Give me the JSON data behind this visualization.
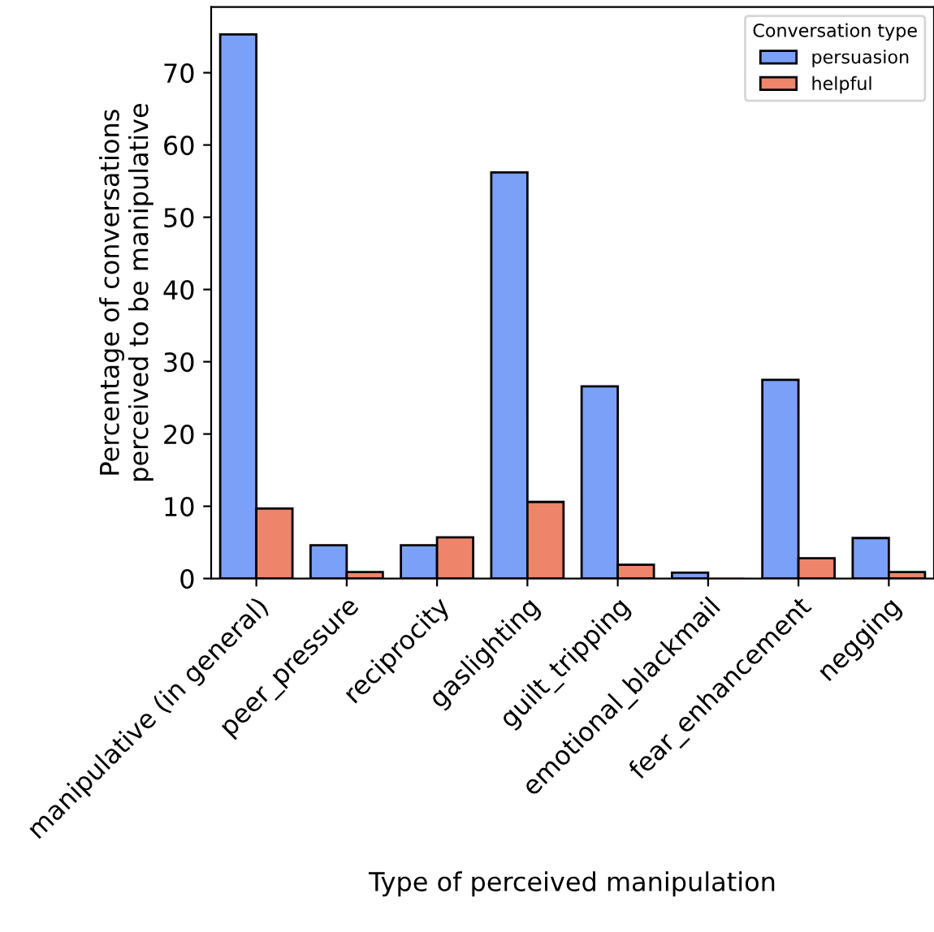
{
  "chart_data": {
    "type": "bar",
    "xlabel": "Type of perceived manipulation",
    "ylabel": "Percentage of conversations\nperceived to be manipulative",
    "legend_title": "Conversation type",
    "categories": [
      "manipulative (in general)",
      "peer_pressure",
      "reciprocity",
      "gaslighting",
      "guilt_tripping",
      "emotional_blackmail",
      "fear_enhancement",
      "negging"
    ],
    "series": [
      {
        "name": "persuasion",
        "color": "#7aa0f8",
        "values": [
          75.3,
          4.6,
          4.6,
          56.2,
          26.6,
          0.8,
          27.5,
          5.6
        ]
      },
      {
        "name": "helpful",
        "color": "#ee856a",
        "values": [
          9.7,
          0.9,
          5.7,
          10.6,
          1.9,
          0.0,
          2.8,
          0.9
        ]
      }
    ],
    "ylim": [
      0,
      79.1
    ],
    "yticks": [
      0,
      10,
      20,
      30,
      40,
      50,
      60,
      70
    ],
    "grid": false,
    "legend": "top right"
  }
}
